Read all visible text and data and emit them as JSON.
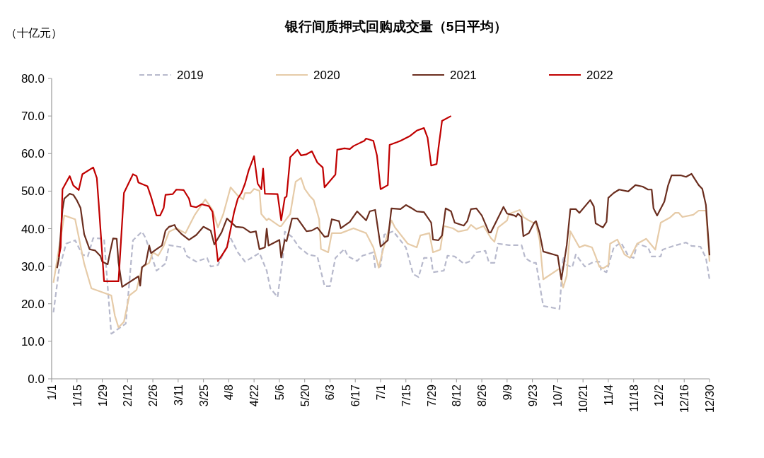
{
  "chart_data": {
    "type": "line",
    "title": "银行间质押式回购成交量（5日平均）",
    "ylabel": "（十亿元）",
    "legend": "top",
    "xlim": [
      "--01-01",
      "--12-30"
    ],
    "xticks": [
      {
        "value": "--01-01",
        "label": "1/1"
      },
      {
        "value": "--01-15",
        "label": "1/15"
      },
      {
        "value": "--01-29",
        "label": "1/29"
      },
      {
        "value": "--02-12",
        "label": "2/12"
      },
      {
        "value": "--02-26",
        "label": "2/26"
      },
      {
        "value": "--03-11",
        "label": "3/11"
      },
      {
        "value": "--03-25",
        "label": "3/25"
      },
      {
        "value": "--04-08",
        "label": "4/8"
      },
      {
        "value": "--04-22",
        "label": "4/22"
      },
      {
        "value": "--05-06",
        "label": "5/6"
      },
      {
        "value": "--05-20",
        "label": "5/20"
      },
      {
        "value": "--06-03",
        "label": "6/3"
      },
      {
        "value": "--06-17",
        "label": "6/17"
      },
      {
        "value": "--07-01",
        "label": "7/1"
      },
      {
        "value": "--07-15",
        "label": "7/15"
      },
      {
        "value": "--07-29",
        "label": "7/29"
      },
      {
        "value": "--08-12",
        "label": "8/12"
      },
      {
        "value": "--08-26",
        "label": "8/26"
      },
      {
        "value": "--09-09",
        "label": "9/9"
      },
      {
        "value": "--09-23",
        "label": "9/23"
      },
      {
        "value": "--10-07",
        "label": "10/7"
      },
      {
        "value": "--10-21",
        "label": "10/21"
      },
      {
        "value": "--11-04",
        "label": "11/4"
      },
      {
        "value": "--11-18",
        "label": "11/18"
      },
      {
        "value": "--12-02",
        "label": "12/2"
      },
      {
        "value": "--12-16",
        "label": "12/16"
      },
      {
        "value": "--12-30",
        "label": "12/30"
      }
    ],
    "ylim": [
      0,
      80
    ],
    "yticks": [
      {
        "value": 0,
        "label": "0.0"
      },
      {
        "value": 10,
        "label": "10.0"
      },
      {
        "value": 20,
        "label": "20.0"
      },
      {
        "value": 30,
        "label": "30.0"
      },
      {
        "value": 40,
        "label": "40.0"
      },
      {
        "value": 50,
        "label": "50.0"
      },
      {
        "value": 60,
        "label": "60.0"
      },
      {
        "value": 70,
        "label": "70.0"
      },
      {
        "value": 80,
        "label": "80.0"
      }
    ],
    "series": [
      {
        "name": "2019",
        "color": "#b7b9cc",
        "line_style": "dashed",
        "x": [
          "--01-02",
          "--01-05",
          "--01-09",
          "--01-14",
          "--01-18",
          "--01-21",
          "--01-24",
          "--01-30",
          "--02-03",
          "--02-11",
          "--02-15",
          "--02-20",
          "--02-22",
          "--02-28",
          "--03-04",
          "--03-06",
          "--03-14",
          "--03-16",
          "--03-21",
          "--03-27",
          "--03-29",
          "--04-02",
          "--04-09",
          "--04-13",
          "--04-17",
          "--04-25",
          "--04-29",
          "--05-01",
          "--05-05",
          "--05-08",
          "--05-09",
          "--05-13",
          "--05-17",
          "--05-22",
          "--05-27",
          "--05-31",
          "--06-03",
          "--06-06",
          "--06-11",
          "--06-13",
          "--06-18",
          "--06-21",
          "--06-27",
          "--06-28",
          "--07-01",
          "--07-03",
          "--07-08",
          "--07-15",
          "--07-19",
          "--07-22",
          "--07-25",
          "--07-29",
          "--07-30",
          "--08-05",
          "--08-07",
          "--08-11",
          "--08-16",
          "--08-19",
          "--08-23",
          "--08-28",
          "--08-30",
          "--09-02",
          "--09-04",
          "--09-10",
          "--09-17",
          "--09-19",
          "--09-23",
          "--09-25",
          "--09-29",
          "--10-08",
          "--10-10",
          "--10-12",
          "--10-15",
          "--10-17",
          "--10-22",
          "--10-27",
          "--10-30",
          "--10-31",
          "--11-03",
          "--11-07",
          "--11-11",
          "--11-15",
          "--11-18",
          "--11-20",
          "--11-26",
          "--11-28",
          "--12-03",
          "--12-04",
          "--12-10",
          "--12-17",
          "--12-20",
          "--12-25",
          "--12-28",
          "--12-30"
        ],
        "values": [
          17.7,
          28.8,
          36,
          36.9,
          33.1,
          32.6,
          37.5,
          37.3,
          12,
          14.7,
          36.9,
          39.2,
          37.5,
          28.8,
          30.7,
          35.6,
          35,
          32.6,
          31.2,
          32.2,
          29.9,
          30.3,
          37.5,
          33.7,
          31.2,
          33.5,
          28.8,
          24.1,
          21.8,
          32.6,
          39.2,
          37.8,
          35,
          33.1,
          32.6,
          24.7,
          24.7,
          32.2,
          34.6,
          32.6,
          31.4,
          32.8,
          33.7,
          29.7,
          29.9,
          38.4,
          39.3,
          35,
          27.9,
          27.1,
          32.2,
          32.2,
          28.4,
          28.8,
          32.8,
          32.6,
          30.7,
          31.2,
          33.7,
          34.1,
          30.9,
          30.9,
          36,
          35.6,
          35.6,
          32.2,
          30.9,
          30.9,
          19.4,
          18.6,
          32.6,
          30.3,
          29.7,
          33.1,
          29.9,
          31.2,
          31.2,
          29,
          28.4,
          35,
          36.3,
          32.8,
          32.2,
          36,
          35,
          32.6,
          32.6,
          34.4,
          35.4,
          36.3,
          35.4,
          35.2,
          32.2,
          26.5
        ]
      },
      {
        "name": "2020",
        "color": "#e6cba8",
        "line_style": "solid",
        "x": [
          "--01-02",
          "--01-08",
          "--01-14",
          "--01-19",
          "--01-23",
          "--02-03",
          "--02-05",
          "--02-07",
          "--02-10",
          "--02-13",
          "--02-17",
          "--02-20",
          "--02-24",
          "--02-26",
          "--02-29",
          "--03-03",
          "--03-06",
          "--03-10",
          "--03-15",
          "--03-20",
          "--03-26",
          "--03-30",
          "--04-02",
          "--04-05",
          "--04-09",
          "--04-13",
          "--04-16",
          "--04-17",
          "--04-20",
          "--04-22",
          "--04-25",
          "--04-26",
          "--04-29",
          "--04-30",
          "--05-06",
          "--05-07",
          "--05-09",
          "--05-12",
          "--05-15",
          "--05-18",
          "--05-20",
          "--05-23",
          "--05-25",
          "--05-28",
          "--05-29",
          "--06-02",
          "--06-04",
          "--06-09",
          "--06-16",
          "--06-23",
          "--06-27",
          "--06-30",
          "--07-02",
          "--07-07",
          "--07-09",
          "--07-16",
          "--07-21",
          "--07-23",
          "--07-28",
          "--07-30",
          "--08-03",
          "--08-05",
          "--08-10",
          "--08-13",
          "--08-18",
          "--08-20",
          "--08-23",
          "--08-27",
          "--08-31",
          "--09-02",
          "--09-04",
          "--09-09",
          "--09-10",
          "--09-16",
          "--09-18",
          "--09-21",
          "--09-25",
          "--09-27",
          "--09-29",
          "--10-08",
          "--10-10",
          "--10-12",
          "--10-13",
          "--10-14",
          "--10-19",
          "--10-22",
          "--10-26",
          "--10-28",
          "--10-30",
          "--11-01",
          "--11-04",
          "--11-05",
          "--11-09",
          "--11-13",
          "--11-16",
          "--11-20",
          "--11-25",
          "--11-30",
          "--12-03",
          "--12-08",
          "--12-11",
          "--12-13",
          "--12-15",
          "--12-21",
          "--12-24",
          "--12-28",
          "--12-30"
        ],
        "values": [
          25.6,
          43.5,
          42.5,
          30.7,
          24.1,
          22.2,
          16.8,
          13.7,
          15.2,
          22.2,
          23.7,
          29.7,
          30.9,
          33.7,
          32.8,
          35.4,
          39.2,
          40.1,
          38.8,
          43.5,
          47.8,
          45,
          40.3,
          43.9,
          51,
          48.8,
          47.8,
          49.5,
          49.5,
          50.6,
          50.1,
          43.9,
          42.2,
          42.7,
          40.7,
          40.7,
          42,
          43.9,
          52.5,
          53.5,
          50.6,
          48.6,
          47.6,
          42.5,
          34.6,
          33.7,
          38.8,
          38.8,
          40.1,
          38.8,
          35,
          29.6,
          33.7,
          42.2,
          40.3,
          36,
          35,
          38.2,
          38.8,
          33.7,
          34.4,
          40.7,
          40.1,
          39.2,
          39.7,
          41,
          39.9,
          40.7,
          37.5,
          36.5,
          40.3,
          42.2,
          43.9,
          45,
          43.1,
          42.2,
          41.2,
          36.9,
          26.5,
          29.4,
          24.3,
          27.5,
          34.4,
          39.3,
          35,
          35.6,
          35,
          32.6,
          29.9,
          29.4,
          30.3,
          36,
          37.1,
          33.1,
          32.2,
          36,
          37.3,
          34.4,
          41.6,
          42.9,
          44.2,
          44.2,
          43.1,
          43.7,
          44.8,
          44.8,
          31.2
        ]
      },
      {
        "name": "2021",
        "color": "#6b2e1f",
        "line_style": "solid",
        "x": [
          "--01-04",
          "--01-05",
          "--01-07",
          "--01-08",
          "--01-11",
          "--01-13",
          "--01-15",
          "--01-17",
          "--01-19",
          "--01-22",
          "--01-25",
          "--01-28",
          "--01-29",
          "--02-01",
          "--02-02",
          "--02-04",
          "--02-06",
          "--02-07",
          "--02-09",
          "--02-18",
          "--02-19",
          "--02-20",
          "--02-22",
          "--02-24",
          "--02-25",
          "--02-28",
          "--03-02",
          "--03-04",
          "--03-06",
          "--03-09",
          "--03-10",
          "--03-13",
          "--03-17",
          "--03-21",
          "--03-25",
          "--03-29",
          "--03-31",
          "--04-04",
          "--04-07",
          "--04-12",
          "--04-16",
          "--04-20",
          "--04-23",
          "--04-25",
          "--04-28",
          "--04-29",
          "--04-30",
          "--05-06",
          "--05-07",
          "--05-09",
          "--05-10",
          "--05-13",
          "--05-16",
          "--05-21",
          "--05-24",
          "--05-27",
          "--05-31",
          "--06-02",
          "--06-04",
          "--06-08",
          "--06-09",
          "--06-14",
          "--06-18",
          "--06-23",
          "--06-25",
          "--06-28",
          "--07-01",
          "--07-05",
          "--07-07",
          "--07-12",
          "--07-15",
          "--07-18",
          "--07-21",
          "--07-25",
          "--07-29",
          "--07-30",
          "--08-02",
          "--08-04",
          "--08-06",
          "--08-09",
          "--08-11",
          "--08-16",
          "--08-18",
          "--08-20",
          "--08-23",
          "--08-26",
          "--08-30",
          "--08-31",
          "--09-07",
          "--09-09",
          "--09-13",
          "--09-14",
          "--09-15",
          "--09-17",
          "--09-18",
          "--09-21",
          "--09-24",
          "--09-25",
          "--09-27",
          "--09-29",
          "--10-07",
          "--10-09",
          "--10-10",
          "--10-12",
          "--10-14",
          "--10-17",
          "--10-19",
          "--10-25",
          "--10-27",
          "--10-28",
          "--11-01",
          "--11-03",
          "--11-04",
          "--11-07",
          "--11-10",
          "--11-15",
          "--11-19",
          "--11-23",
          "--11-26",
          "--11-28",
          "--11-29",
          "--12-01",
          "--12-05",
          "--12-07",
          "--12-09",
          "--12-14",
          "--12-17",
          "--12-20",
          "--12-22",
          "--12-24",
          "--12-26",
          "--12-28",
          "--12-30"
        ],
        "values": [
          29.5,
          32,
          45,
          48,
          49.3,
          49,
          47.5,
          45.5,
          38.5,
          34.5,
          34.2,
          32.7,
          31.2,
          30.5,
          33,
          37.4,
          37.3,
          31,
          24.5,
          27.3,
          24.8,
          29.7,
          30.5,
          35.5,
          33.5,
          34.5,
          35.5,
          39.5,
          40.5,
          41,
          40,
          38.5,
          37,
          38.3,
          40.5,
          39.5,
          35.8,
          39,
          42.7,
          40.5,
          40.3,
          39,
          39.3,
          34.5,
          35,
          40,
          35.5,
          37,
          32.3,
          37,
          36.7,
          42.7,
          42.7,
          39.3,
          39.5,
          40.3,
          37.8,
          38,
          42.5,
          42,
          40.1,
          41.8,
          44.6,
          42.2,
          44.6,
          45,
          35.2,
          36.9,
          45.4,
          45.2,
          46.3,
          45.5,
          44.6,
          44.4,
          41.6,
          37.1,
          36.9,
          38.2,
          45.4,
          44.6,
          41.6,
          40.8,
          42,
          45.2,
          45.4,
          43.5,
          39,
          39,
          45.8,
          44,
          43.5,
          43.2,
          44,
          43.1,
          38,
          38.8,
          41.6,
          42,
          38.8,
          33.9,
          32.8,
          26.5,
          29.4,
          35.6,
          45.2,
          45.2,
          44.2,
          47.6,
          45.9,
          41.4,
          40.3,
          41.8,
          48.2,
          49.5,
          50.4,
          49.9,
          51.6,
          51.2,
          50.4,
          50.4,
          45.4,
          43.5,
          47.2,
          51.4,
          54.2,
          54.2,
          53.8,
          54.6,
          53.1,
          51.6,
          50.6,
          46.3,
          32.9
        ]
      },
      {
        "name": "2022",
        "color": "#c00000",
        "line_style": "solid",
        "x": [
          "--01-05",
          "--01-06",
          "--01-07",
          "--01-11",
          "--01-13",
          "--01-16",
          "--01-18",
          "--01-24",
          "--01-26",
          "--01-27",
          "--01-30",
          "--02-07",
          "--02-10",
          "--02-15",
          "--02-17",
          "--02-18",
          "--02-23",
          "--02-25",
          "--02-28",
          "--03-01",
          "--03-03",
          "--03-04",
          "--03-08",
          "--03-10",
          "--03-14",
          "--03-17",
          "--03-18",
          "--03-21",
          "--03-24",
          "--03-28",
          "--03-30",
          "--04-02",
          "--04-05",
          "--04-07",
          "--04-11",
          "--04-13",
          "--04-15",
          "--04-17",
          "--04-19",
          "--04-22",
          "--04-24",
          "--04-26",
          "--04-27",
          "--04-28",
          "--05-05",
          "--05-07",
          "--05-09",
          "--05-10",
          "--05-12",
          "--05-16",
          "--05-18",
          "--05-21",
          "--05-24",
          "--05-27",
          "--05-30",
          "--05-31",
          "--06-06",
          "--06-07",
          "--06-11",
          "--06-14",
          "--06-16",
          "--06-22",
          "--06-23",
          "--06-27",
          "--06-29",
          "--07-01",
          "--07-05",
          "--07-06",
          "--07-10",
          "--07-12",
          "--07-17",
          "--07-21",
          "--07-25",
          "--07-27",
          "--07-29",
          "--08-01",
          "--08-02",
          "--08-04",
          "--08-09"
        ],
        "values": [
          32.5,
          35,
          50.5,
          54,
          51.5,
          50.3,
          54.5,
          56.3,
          53.5,
          47,
          26,
          26,
          49.5,
          54.5,
          54,
          52.3,
          51.3,
          48.5,
          43.5,
          43.5,
          45.5,
          49,
          49.2,
          50.4,
          50.3,
          48,
          46,
          45.7,
          46.5,
          46,
          44.5,
          31.3,
          33.5,
          35,
          44.5,
          48,
          49.5,
          52,
          55.5,
          59.3,
          52,
          50.5,
          56,
          49.3,
          49.2,
          42.2,
          48.2,
          48.6,
          59,
          61,
          59.5,
          59.8,
          60.6,
          57.6,
          56.3,
          51,
          54.4,
          61,
          61.4,
          61.2,
          62,
          63.4,
          64,
          63.4,
          59.5,
          50.5,
          51.6,
          62.3,
          63,
          63.4,
          64.6,
          66.1,
          66.8,
          64.2,
          56.8,
          57.2,
          61.4,
          68.7,
          70
        ]
      }
    ]
  }
}
